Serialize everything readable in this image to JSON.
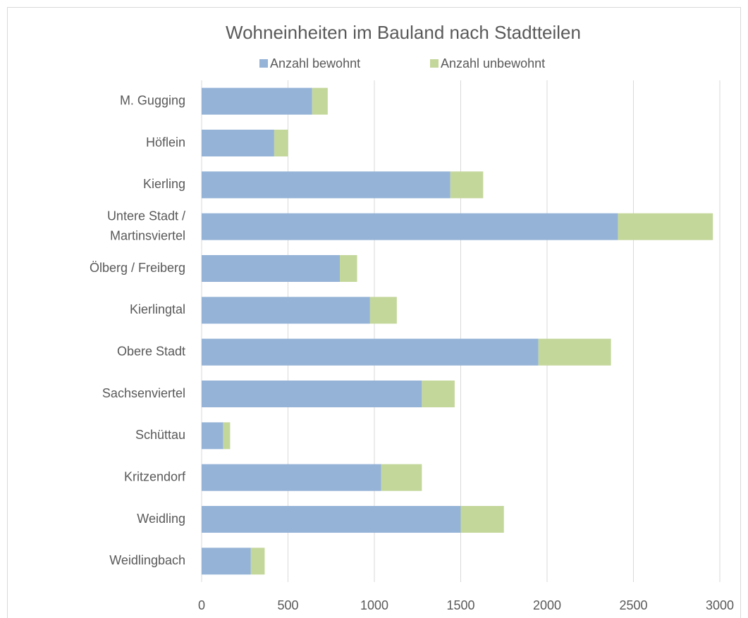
{
  "chart_data": {
    "type": "bar",
    "orientation": "horizontal",
    "stacked": true,
    "title": "Wohneinheiten im Bauland nach Stadtteilen",
    "categories": [
      "M. Gugging",
      "Höflein",
      "Kierling",
      "Untere Stadt / Martinsviertel",
      "Ölberg / Freiberg",
      "Kierlingtal",
      "Obere Stadt",
      "Sachsenviertel",
      "Schüttau",
      "Kritzendorf",
      "Weidling",
      "Weidlingbach"
    ],
    "series": [
      {
        "name": "Anzahl bewohnt",
        "color": "#95b3d7",
        "values": [
          640,
          420,
          1440,
          2410,
          800,
          975,
          1950,
          1275,
          125,
          1040,
          1500,
          285
        ]
      },
      {
        "name": "Anzahl unbewohnt",
        "color": "#c4d79b",
        "values": [
          90,
          80,
          190,
          550,
          100,
          155,
          420,
          190,
          40,
          235,
          250,
          80
        ]
      }
    ],
    "xlim": [
      0,
      3000
    ],
    "xticks": [
      0,
      500,
      1000,
      1500,
      2000,
      2500,
      3000
    ],
    "grid": true,
    "legend": "top"
  }
}
